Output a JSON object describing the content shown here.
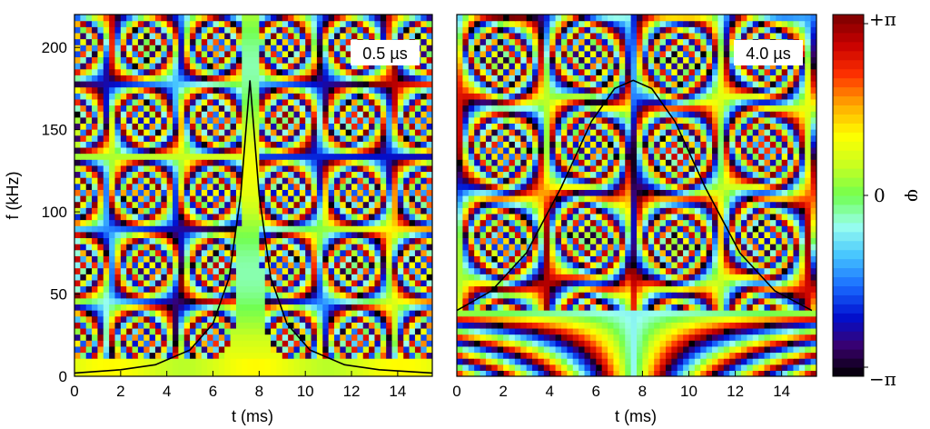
{
  "chart_data": [
    {
      "type": "heatmap",
      "panel": "left",
      "annotation": "0.5 µs",
      "xlabel": "t (ms)",
      "ylabel": "f (kHz)",
      "xlim": [
        0,
        15.5
      ],
      "ylim": [
        0,
        220
      ],
      "x_ticks": [
        "0",
        "2",
        "4",
        "6",
        "8",
        "10",
        "12",
        "14"
      ],
      "x_tick_values": [
        0,
        2,
        4,
        6,
        8,
        10,
        12,
        14
      ],
      "y_ticks": [
        "0",
        "50",
        "100",
        "150",
        "200"
      ],
      "y_tick_values": [
        0,
        50,
        100,
        150,
        200
      ],
      "overlay_line": {
        "peak_t": 7.6,
        "peak_f": 180,
        "points": [
          {
            "t": 0.0,
            "f": 2
          },
          {
            "t": 2.0,
            "f": 4
          },
          {
            "t": 3.5,
            "f": 7
          },
          {
            "t": 5.0,
            "f": 16
          },
          {
            "t": 6.0,
            "f": 32
          },
          {
            "t": 6.7,
            "f": 60
          },
          {
            "t": 7.2,
            "f": 110
          },
          {
            "t": 7.6,
            "f": 180
          },
          {
            "t": 8.0,
            "f": 110
          },
          {
            "t": 8.5,
            "f": 60
          },
          {
            "t": 9.2,
            "f": 32
          },
          {
            "t": 10.2,
            "f": 16
          },
          {
            "t": 11.7,
            "f": 7
          },
          {
            "t": 13.2,
            "f": 4
          },
          {
            "t": 15.5,
            "f": 2
          }
        ]
      }
    },
    {
      "type": "heatmap",
      "panel": "right",
      "annotation": "4.0 µs",
      "xlabel": "t (ms)",
      "ylabel": "",
      "xlim": [
        0,
        15.5
      ],
      "ylim": [
        0,
        220
      ],
      "x_ticks": [
        "0",
        "2",
        "4",
        "6",
        "8",
        "10",
        "12",
        "14"
      ],
      "x_tick_values": [
        0,
        2,
        4,
        6,
        8,
        10,
        12,
        14
      ],
      "overlay_line": {
        "peak_t": 7.6,
        "peak_f": 180,
        "points": [
          {
            "t": 0.0,
            "f": 40
          },
          {
            "t": 1.5,
            "f": 52
          },
          {
            "t": 3.0,
            "f": 75
          },
          {
            "t": 4.5,
            "f": 115
          },
          {
            "t": 5.8,
            "f": 155
          },
          {
            "t": 6.8,
            "f": 175
          },
          {
            "t": 7.6,
            "f": 180
          },
          {
            "t": 8.4,
            "f": 175
          },
          {
            "t": 9.4,
            "f": 155
          },
          {
            "t": 10.7,
            "f": 115
          },
          {
            "t": 12.2,
            "f": 75
          },
          {
            "t": 13.7,
            "f": 52
          },
          {
            "t": 15.3,
            "f": 40
          }
        ]
      }
    }
  ],
  "colorbar": {
    "label": "φ",
    "ticks": [
      "+π",
      "0",
      "−π"
    ],
    "range": [
      -3.14159,
      3.14159
    ],
    "colors": [
      "#000000",
      "#3a006e",
      "#0010d0",
      "#1a6cff",
      "#45c4ff",
      "#99ffee",
      "#70ff50",
      "#c8ff20",
      "#ffff00",
      "#ffaa00",
      "#ff3200",
      "#c80000",
      "#7a0000"
    ]
  }
}
